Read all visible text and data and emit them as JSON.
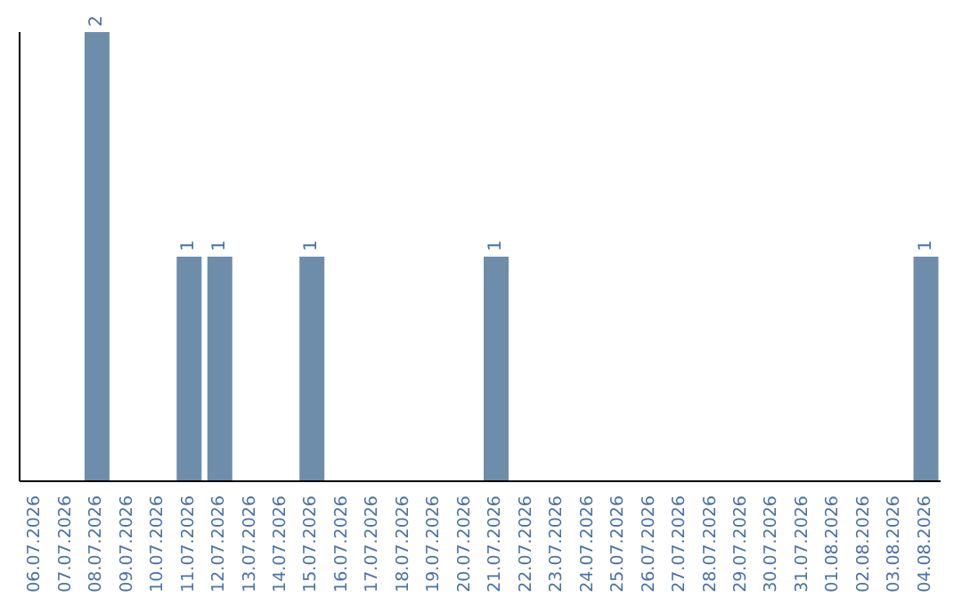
{
  "chart_data": {
    "type": "bar",
    "categories": [
      "06.07.2026",
      "07.07.2026",
      "08.07.2026",
      "09.07.2026",
      "10.07.2026",
      "11.07.2026",
      "12.07.2026",
      "13.07.2026",
      "14.07.2026",
      "15.07.2026",
      "16.07.2026",
      "17.07.2026",
      "18.07.2026",
      "19.07.2026",
      "20.07.2026",
      "21.07.2026",
      "22.07.2026",
      "23.07.2026",
      "24.07.2026",
      "25.07.2026",
      "26.07.2026",
      "27.07.2026",
      "28.07.2026",
      "29.07.2026",
      "30.07.2026",
      "31.07.2026",
      "01.08.2026",
      "02.08.2026",
      "03.08.2026",
      "04.08.2026"
    ],
    "values": [
      0,
      0,
      2,
      0,
      0,
      1,
      1,
      0,
      0,
      1,
      0,
      0,
      0,
      0,
      0,
      1,
      0,
      0,
      0,
      0,
      0,
      0,
      0,
      0,
      0,
      0,
      0,
      0,
      0,
      1
    ],
    "value_labels": [
      null,
      null,
      "2",
      null,
      null,
      "1",
      "1",
      null,
      null,
      "1",
      null,
      null,
      null,
      null,
      null,
      "1",
      null,
      null,
      null,
      null,
      null,
      null,
      null,
      null,
      null,
      null,
      null,
      null,
      null,
      "1"
    ],
    "color": "#6d8dab",
    "tick_labels": "x",
    "grid": false,
    "legend": false
  }
}
